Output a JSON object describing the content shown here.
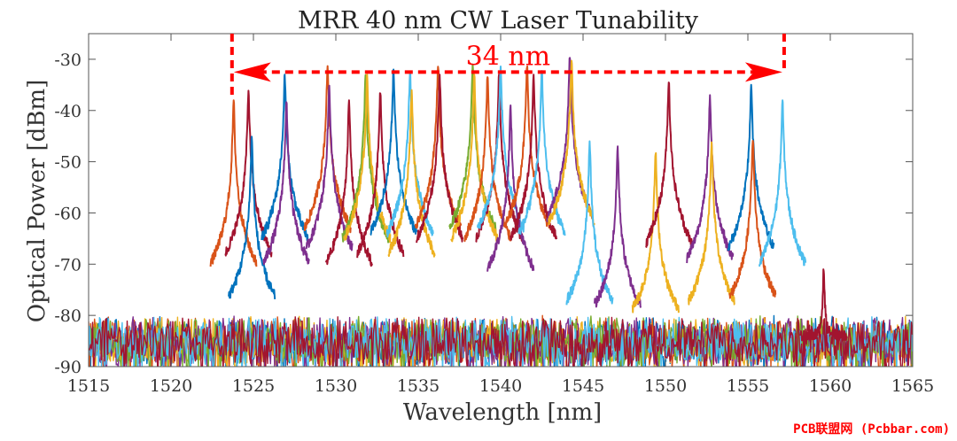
{
  "chart_data": {
    "type": "line",
    "title": "MRR 40 nm CW Laser Tunability",
    "xlabel": "Wavelength [nm]",
    "ylabel": "Optical Power [dBm]",
    "xlim": [
      1515,
      1565
    ],
    "ylim": [
      -90,
      -25
    ],
    "xticks": [
      1515,
      1520,
      1525,
      1530,
      1535,
      1540,
      1545,
      1550,
      1555,
      1560,
      1565
    ],
    "yticks": [
      -30,
      -40,
      -50,
      -60,
      -70,
      -80,
      -90
    ],
    "grid": false,
    "noise_floor_dbm": -84,
    "series_colors": [
      "#0072BD",
      "#D95319",
      "#EDB120",
      "#7E2F8E",
      "#77AC30",
      "#4DBEEE",
      "#A2142F"
    ],
    "peaks": [
      {
        "wavelength": 1523.8,
        "power": -38,
        "color": "#D95319"
      },
      {
        "wavelength": 1524.7,
        "power": -36,
        "color": "#A2142F"
      },
      {
        "wavelength": 1524.9,
        "power": -45,
        "color": "#0072BD"
      },
      {
        "wavelength": 1526.9,
        "power": -33,
        "color": "#0072BD"
      },
      {
        "wavelength": 1527.0,
        "power": -38,
        "color": "#7E2F8E"
      },
      {
        "wavelength": 1529.5,
        "power": -31,
        "color": "#D95319"
      },
      {
        "wavelength": 1529.6,
        "power": -35,
        "color": "#7E2F8E"
      },
      {
        "wavelength": 1530.8,
        "power": -38,
        "color": "#A2142F"
      },
      {
        "wavelength": 1531.8,
        "power": -33,
        "color": "#77AC30"
      },
      {
        "wavelength": 1531.9,
        "power": -33,
        "color": "#EDB120"
      },
      {
        "wavelength": 1532.7,
        "power": -36,
        "color": "#A2142F"
      },
      {
        "wavelength": 1533.5,
        "power": -32,
        "color": "#0072BD"
      },
      {
        "wavelength": 1534.5,
        "power": -32,
        "color": "#4DBEEE"
      },
      {
        "wavelength": 1534.6,
        "power": -36,
        "color": "#EDB120"
      },
      {
        "wavelength": 1536.2,
        "power": -31,
        "color": "#D95319"
      },
      {
        "wavelength": 1536.3,
        "power": -33,
        "color": "#A2142F"
      },
      {
        "wavelength": 1538.3,
        "power": -31,
        "color": "#77AC30"
      },
      {
        "wavelength": 1538.4,
        "power": -33,
        "color": "#EDB120"
      },
      {
        "wavelength": 1539.2,
        "power": -33,
        "color": "#D95319"
      },
      {
        "wavelength": 1539.9,
        "power": -33,
        "color": "#A2142F"
      },
      {
        "wavelength": 1540.0,
        "power": -31,
        "color": "#4DBEEE"
      },
      {
        "wavelength": 1540.6,
        "power": -39,
        "color": "#7E2F8E"
      },
      {
        "wavelength": 1541.6,
        "power": -31,
        "color": "#D95319"
      },
      {
        "wavelength": 1542.0,
        "power": -33,
        "color": "#A2142F"
      },
      {
        "wavelength": 1542.5,
        "power": -32,
        "color": "#4DBEEE"
      },
      {
        "wavelength": 1544.2,
        "power": -29,
        "color": "#7E2F8E"
      },
      {
        "wavelength": 1544.3,
        "power": -30,
        "color": "#EDB120"
      },
      {
        "wavelength": 1545.4,
        "power": -46,
        "color": "#4DBEEE"
      },
      {
        "wavelength": 1547.1,
        "power": -47,
        "color": "#7E2F8E"
      },
      {
        "wavelength": 1549.4,
        "power": -48,
        "color": "#EDB120"
      },
      {
        "wavelength": 1550.2,
        "power": -34,
        "color": "#A2142F"
      },
      {
        "wavelength": 1552.7,
        "power": -37,
        "color": "#7E2F8E"
      },
      {
        "wavelength": 1552.8,
        "power": -46,
        "color": "#EDB120"
      },
      {
        "wavelength": 1555.2,
        "power": -35,
        "color": "#0072BD"
      },
      {
        "wavelength": 1555.3,
        "power": -45,
        "color": "#D95319"
      },
      {
        "wavelength": 1557.1,
        "power": -38,
        "color": "#4DBEEE"
      },
      {
        "wavelength": 1559.6,
        "power": -71,
        "color": "#A2142F"
      }
    ],
    "annotation": {
      "label": "34 nm",
      "from": 1523.7,
      "to": 1557.2,
      "y": -32.5,
      "color": "#ff0000"
    }
  },
  "watermark": "PCB联盟网 (Pcbbar.com)"
}
